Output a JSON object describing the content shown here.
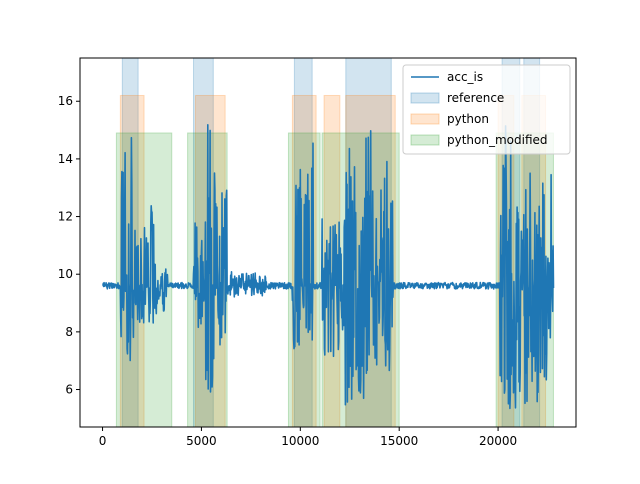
{
  "chart_data": {
    "type": "line",
    "title": "",
    "xlabel": "",
    "ylabel": "",
    "xlim": [
      -1140,
      23940
    ],
    "ylim": [
      4.7,
      17.5
    ],
    "x_ticks": [
      0,
      5000,
      10000,
      15000,
      20000
    ],
    "x_tick_labels": [
      "0",
      "5000",
      "10000",
      "15000",
      "20000"
    ],
    "y_ticks": [
      6,
      8,
      10,
      12,
      14,
      16
    ],
    "y_tick_labels": [
      "6",
      "8",
      "10",
      "12",
      "14",
      "16"
    ],
    "grid": false,
    "legend_position": "top-right",
    "line_series": {
      "name": "acc_is",
      "color": "#1f77b4",
      "baseline": 9.6,
      "x_range": [
        0,
        22800
      ],
      "activity_segments": [
        {
          "x": [
            900,
            1600
          ],
          "max": 15.0,
          "min": 6.6
        },
        {
          "x": [
            1600,
            2600
          ],
          "max": 12.5,
          "min": 8.3
        },
        {
          "x": [
            2600,
            3300
          ],
          "max": 10.6,
          "min": 8.6
        },
        {
          "x": [
            4600,
            5200
          ],
          "max": 12.0,
          "min": 8.0
        },
        {
          "x": [
            5200,
            5700
          ],
          "max": 16.3,
          "min": 5.9
        },
        {
          "x": [
            5700,
            6300
          ],
          "max": 13.0,
          "min": 7.0
        },
        {
          "x": [
            6300,
            8300
          ],
          "max": 10.1,
          "min": 9.2
        },
        {
          "x": [
            9600,
            10700
          ],
          "max": 14.7,
          "min": 7.3
        },
        {
          "x": [
            11100,
            12100
          ],
          "max": 12.0,
          "min": 7.0
        },
        {
          "x": [
            12100,
            13600
          ],
          "max": 15.1,
          "min": 5.4
        },
        {
          "x": [
            13600,
            14700
          ],
          "max": 14.3,
          "min": 6.5
        },
        {
          "x": [
            20100,
            20900
          ],
          "max": 15.5,
          "min": 5.3
        },
        {
          "x": [
            20900,
            22800
          ],
          "max": 13.7,
          "min": 5.4
        }
      ]
    },
    "span_series": [
      {
        "name": "reference",
        "color": "#1f77b4",
        "y_range": [
          4.7,
          17.5
        ],
        "spans": [
          [
            1000,
            1800
          ],
          [
            4600,
            5600
          ],
          [
            9700,
            10600
          ],
          [
            12300,
            14600
          ],
          [
            20200,
            21100
          ],
          [
            21300,
            22100
          ]
        ]
      },
      {
        "name": "python",
        "color": "#ff7f0e",
        "y_range": [
          4.7,
          16.2
        ],
        "spans": [
          [
            900,
            2100
          ],
          [
            4700,
            6200
          ],
          [
            9600,
            10800
          ],
          [
            11200,
            12000
          ],
          [
            12300,
            14800
          ],
          [
            20000,
            20800
          ],
          [
            21200,
            22400
          ]
        ]
      },
      {
        "name": "python_modified",
        "color": "#2ca02c",
        "y_range": [
          4.7,
          14.9
        ],
        "spans": [
          [
            700,
            3500
          ],
          [
            4300,
            6300
          ],
          [
            9400,
            11000
          ],
          [
            11100,
            15000
          ],
          [
            19900,
            22800
          ]
        ]
      }
    ],
    "legend": [
      "acc_is",
      "reference",
      "python",
      "python_modified"
    ]
  }
}
